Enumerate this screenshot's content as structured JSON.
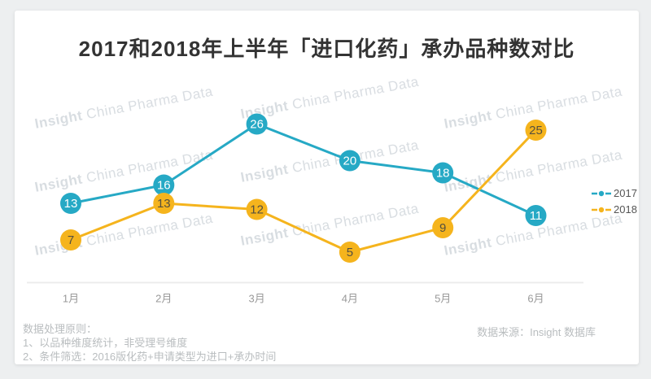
{
  "title": "2017和2018年上半年「进口化药」承办品种数对比",
  "watermark": {
    "brand": "Insight",
    "suffix": "China Pharma Data"
  },
  "chart_data": {
    "type": "line",
    "title": "2017和2018年上半年「进口化药」承办品种数对比",
    "categories": [
      "1月",
      "2月",
      "3月",
      "4月",
      "5月",
      "6月"
    ],
    "series": [
      {
        "name": "2017",
        "color": "#26a9c5",
        "label_color": "#ffffff",
        "values": [
          13,
          16,
          26,
          20,
          18,
          11
        ]
      },
      {
        "name": "2018",
        "color": "#f5b41d",
        "label_color": "#55503f",
        "values": [
          7,
          13,
          12,
          5,
          9,
          25
        ]
      }
    ],
    "xlabel": "",
    "ylabel": "",
    "ylim": [
      0,
      30
    ],
    "grid": false,
    "legend_position": "middle-right",
    "data_labels": "inside-markers",
    "axis_color": "#ececec",
    "tick_color": "#999999"
  },
  "footer": {
    "left_lines": [
      "数据处理原则：",
      "1、以品种维度统计，非受理号维度",
      "2、条件筛选：2016版化药+申请类型为进口+承办时间"
    ],
    "right_text": "数据来源：Insight 数据库"
  }
}
